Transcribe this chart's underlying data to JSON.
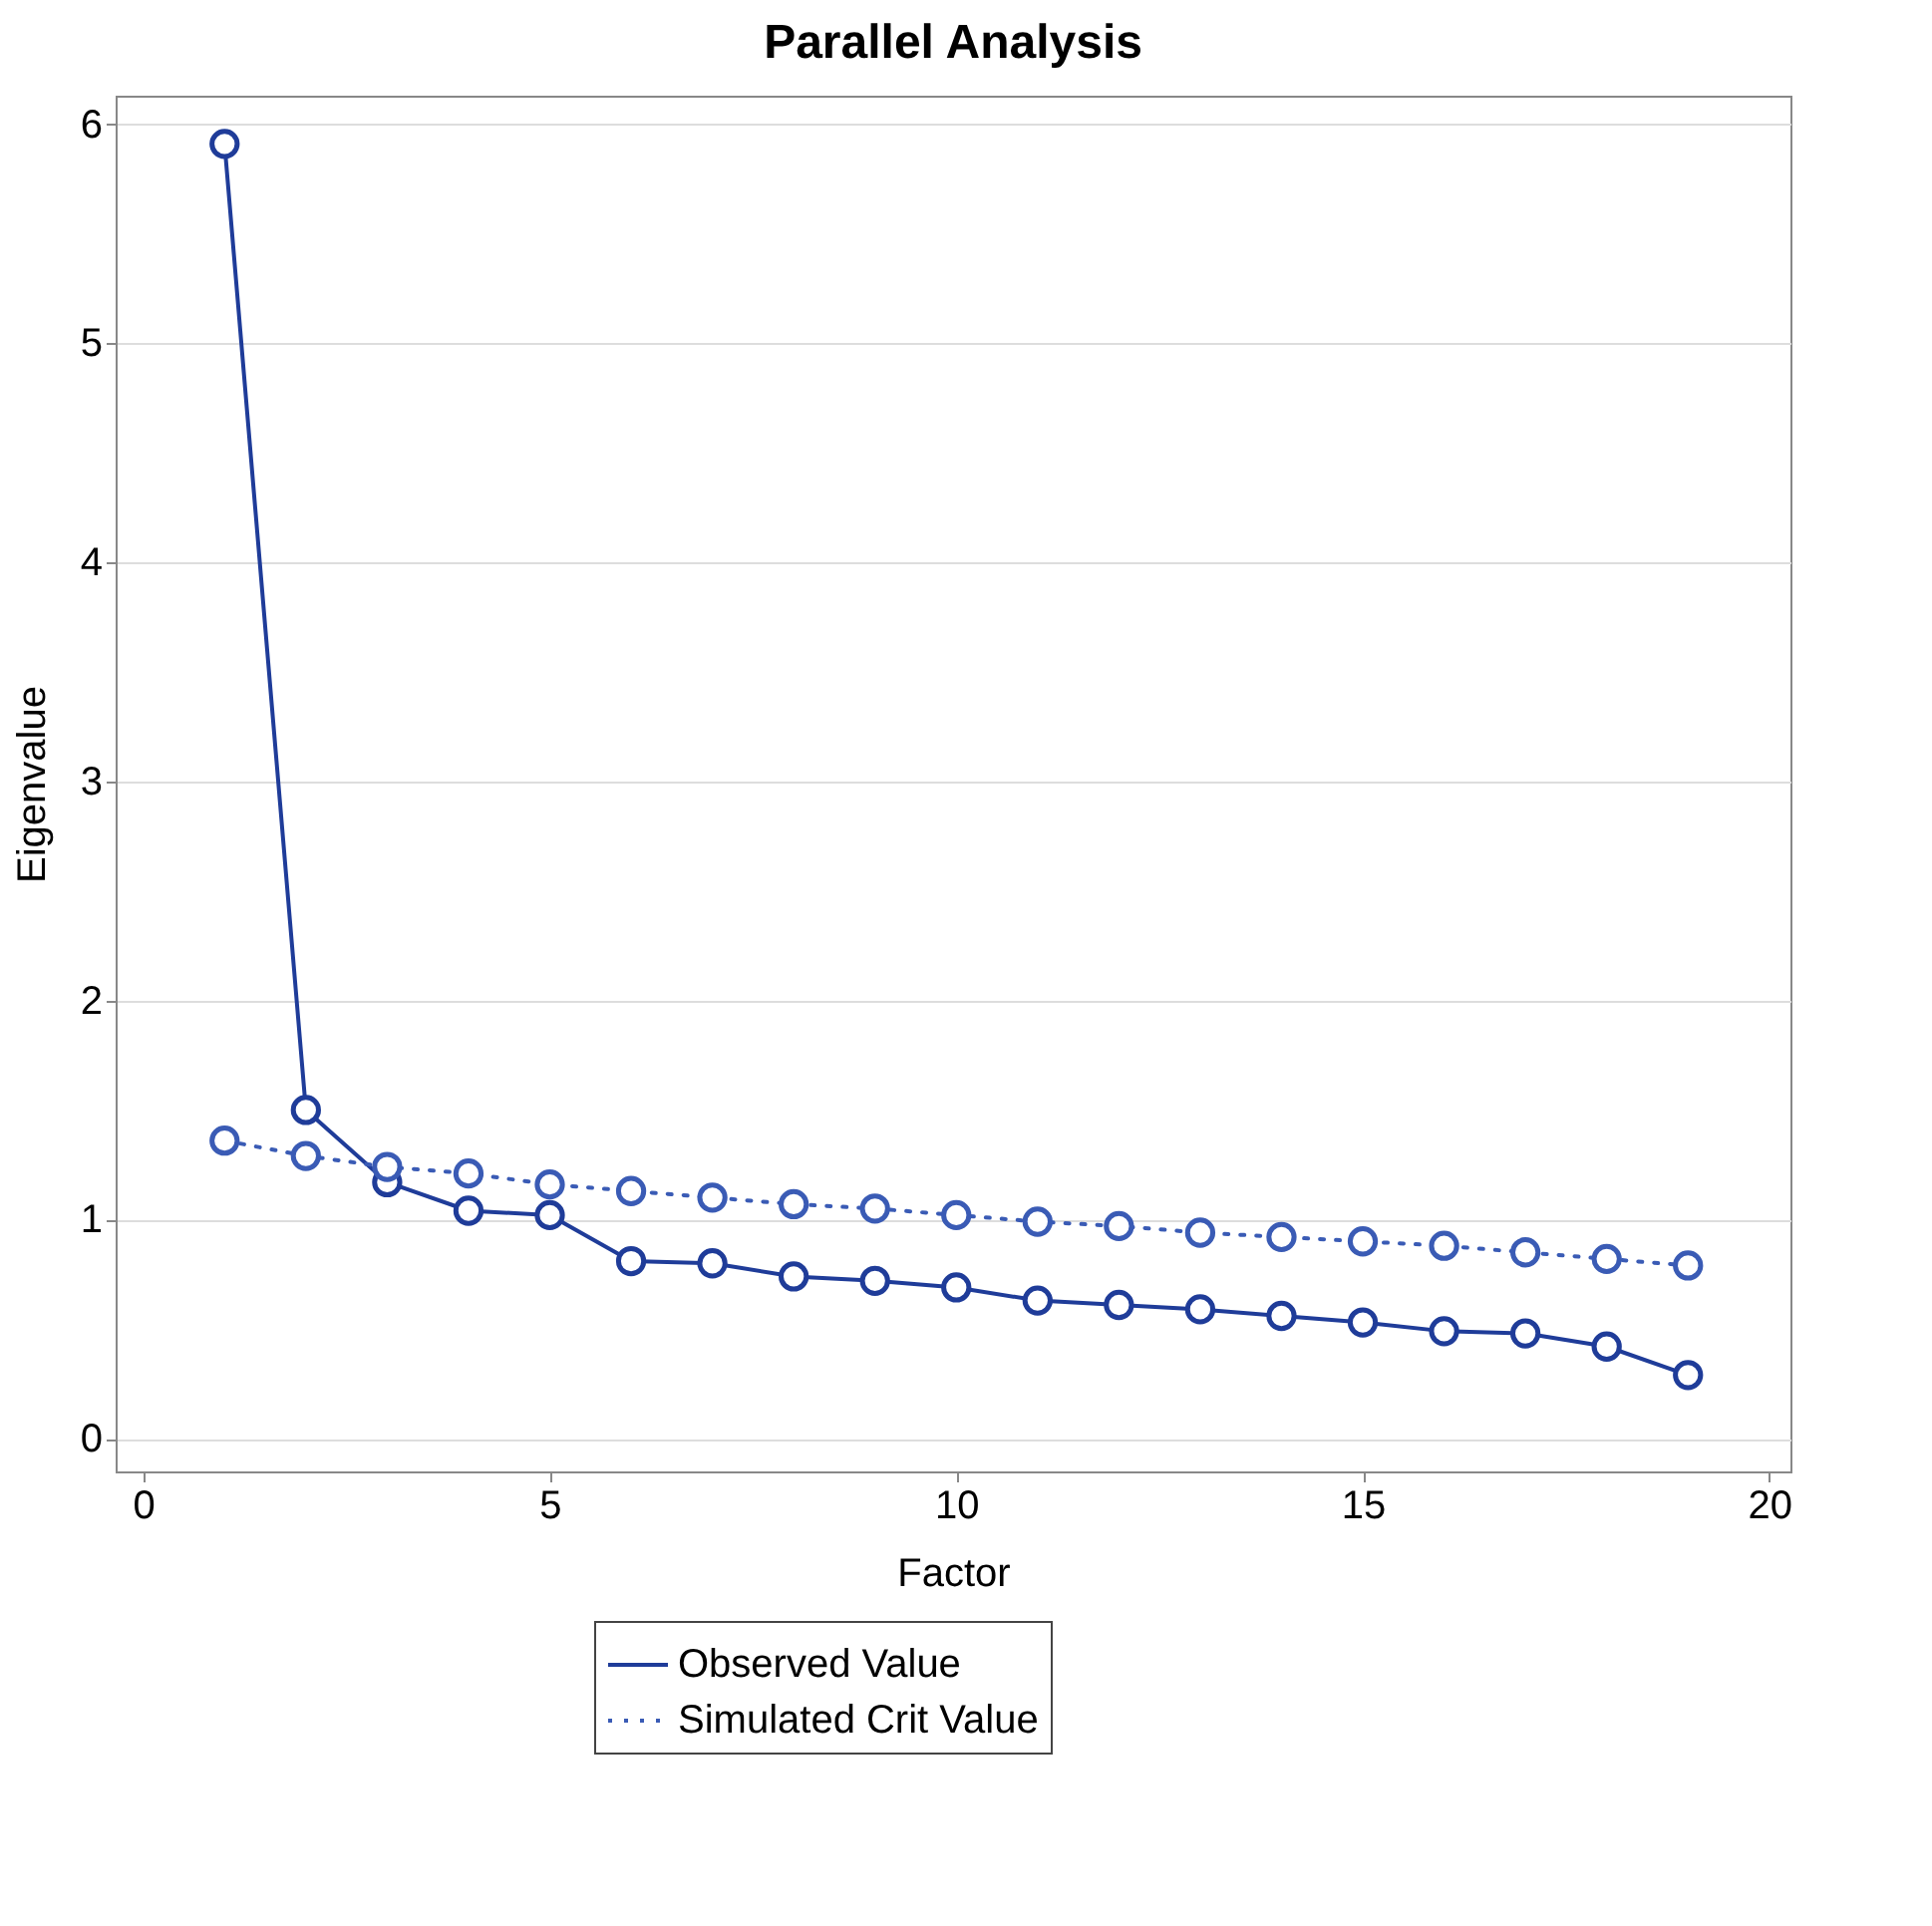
{
  "chart_data": {
    "type": "line",
    "title": "Parallel Analysis",
    "xlabel": "Factor",
    "ylabel": "Eigenvalue",
    "x": [
      1,
      2,
      3,
      4,
      5,
      6,
      7,
      8,
      9,
      10,
      11,
      12,
      13,
      14,
      15,
      16,
      17,
      18,
      19
    ],
    "series": [
      {
        "name": "Observed Value",
        "color": "#1f3c99",
        "line_style": "solid",
        "values": [
          5.91,
          1.5,
          1.17,
          1.04,
          1.02,
          0.81,
          0.8,
          0.74,
          0.72,
          0.69,
          0.63,
          0.61,
          0.59,
          0.56,
          0.53,
          0.49,
          0.48,
          0.42,
          0.29
        ]
      },
      {
        "name": "Simulated Crit Value",
        "color": "#3a5bb5",
        "line_style": "dotted",
        "values": [
          1.36,
          1.29,
          1.24,
          1.21,
          1.16,
          1.13,
          1.1,
          1.07,
          1.05,
          1.02,
          0.99,
          0.97,
          0.94,
          0.92,
          0.9,
          0.88,
          0.85,
          0.82,
          0.79
        ]
      }
    ],
    "xlim": [
      -0.34,
      20.26
    ],
    "xticks": [
      0,
      5,
      10,
      15,
      20
    ],
    "ylim": [
      -0.15,
      6.13
    ],
    "yticks": [
      0,
      1,
      2,
      3,
      4,
      5,
      6
    ],
    "grid": "y",
    "legend": "bottom",
    "marker": "circle"
  }
}
